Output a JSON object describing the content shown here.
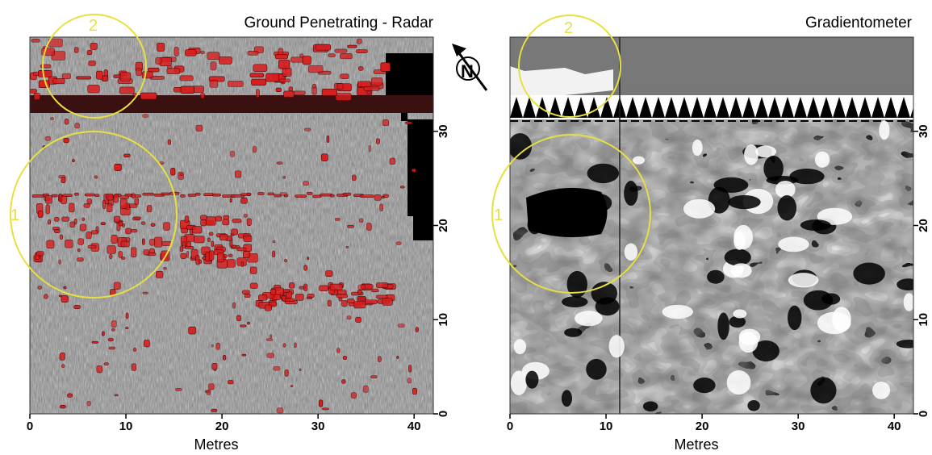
{
  "panels": [
    {
      "title": "Ground Penetrating - Radar",
      "xlabel": "Metres",
      "x_ticks": [
        "0",
        "10",
        "20",
        "30",
        "40"
      ],
      "y_ticks": [
        "0",
        "10",
        "20",
        "30"
      ],
      "circles": [
        {
          "label": "1"
        },
        {
          "label": "2"
        }
      ]
    },
    {
      "title": "Gradientometer",
      "xlabel": "Metres",
      "x_ticks": [
        "0",
        "10",
        "20",
        "30",
        "40"
      ],
      "y_ticks": [
        "0",
        "10",
        "20",
        "30"
      ],
      "circles": [
        {
          "label": "1"
        },
        {
          "label": "2"
        }
      ]
    }
  ],
  "north_arrow": {
    "label": "N"
  },
  "colors": {
    "gpr_background": "#8c8c8c",
    "gpr_anomaly": "#d81e1e",
    "gpr_band": "#3a1010",
    "grad_gray": "#777777",
    "circle": "#e6e040"
  }
}
